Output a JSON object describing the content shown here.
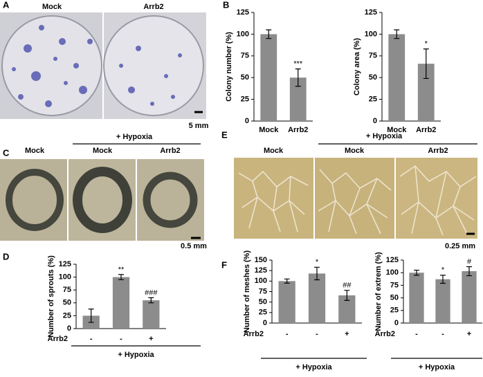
{
  "panel_labels": [
    "A",
    "B",
    "C",
    "D",
    "E",
    "F"
  ],
  "panel_a": {
    "labels": [
      "Mock",
      "Arrb2"
    ],
    "scale_bar": "5 mm"
  },
  "panel_c": {
    "group": "+ Hypoxia",
    "labels": [
      "Mock",
      "Mock",
      "Arrb2"
    ],
    "scale_bar": "0.5 mm"
  },
  "panel_e": {
    "group": "+ Hypoxia",
    "labels": [
      "Mock",
      "Mock",
      "Arrb2"
    ],
    "scale_bar": "0.25 mm"
  },
  "chart_data": [
    {
      "type": "bar",
      "ylabel": "Colony number (%)",
      "categories": [
        "Mock",
        "Arrb2"
      ],
      "values": [
        100,
        50
      ],
      "errors": [
        5,
        10
      ],
      "significance": [
        null,
        "***"
      ],
      "color": "#8c8c8c",
      "ylim": [
        0,
        125
      ],
      "yticks": [
        0,
        25,
        50,
        75,
        100,
        125
      ]
    },
    {
      "type": "bar",
      "ylabel": "Colony area (%)",
      "categories": [
        "Mock",
        "Arrb2"
      ],
      "values": [
        100,
        66
      ],
      "errors": [
        5,
        17
      ],
      "significance": [
        null,
        "*"
      ],
      "color": "#8c8c8c",
      "ylim": [
        0,
        125
      ],
      "yticks": [
        0,
        25,
        50,
        75,
        100,
        125
      ]
    },
    {
      "type": "bar",
      "ylabel": "Number of sprouts (%)",
      "row_label": "Arrb2",
      "group_label": "+ Hypoxia",
      "categories": [
        "-",
        "-",
        "+"
      ],
      "values": [
        25,
        100,
        55
      ],
      "errors": [
        13,
        5,
        5
      ],
      "significance": [
        null,
        "**",
        "###"
      ],
      "color": "#8c8c8c",
      "ylim": [
        0,
        125
      ],
      "yticks": [
        0,
        25,
        50,
        75,
        100,
        125
      ]
    },
    {
      "type": "bar",
      "ylabel": "Number of meshes (%)",
      "row_label": "Arrb2",
      "group_label": "+ Hypoxia",
      "categories": [
        "-",
        "-",
        "+"
      ],
      "values": [
        100,
        118,
        66
      ],
      "errors": [
        5,
        15,
        12
      ],
      "significance": [
        null,
        "*",
        "##"
      ],
      "color": "#8c8c8c",
      "ylim": [
        0,
        150
      ],
      "yticks": [
        0,
        25,
        50,
        75,
        100,
        125,
        150
      ]
    },
    {
      "type": "bar",
      "ylabel": "Number of extrem (%)",
      "row_label": "Arrb2",
      "group_label": "+ Hypoxia",
      "categories": [
        "-",
        "-",
        "+"
      ],
      "values": [
        100,
        87,
        103
      ],
      "errors": [
        5,
        8,
        9
      ],
      "significance": [
        null,
        "*",
        "#"
      ],
      "color": "#8c8c8c",
      "ylim": [
        0,
        125
      ],
      "yticks": [
        0,
        25,
        50,
        75,
        100,
        125
      ]
    }
  ]
}
